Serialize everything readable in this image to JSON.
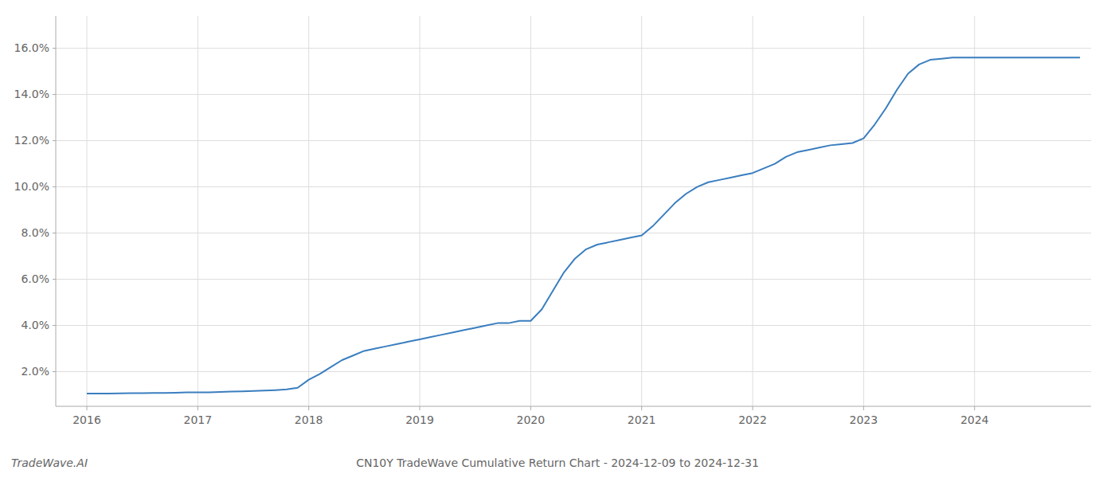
{
  "chart_data": {
    "type": "line",
    "title": "CN10Y TradeWave Cumulative Return Chart - 2024-12-09 to 2024-12-31",
    "annotations": [
      "TradeWave.AI"
    ],
    "color": "#3a7ebf",
    "x": [
      2016.0,
      2016.1,
      2016.2,
      2016.3,
      2016.4,
      2016.5,
      2016.6,
      2016.7,
      2016.8,
      2016.9,
      2017.0,
      2017.1,
      2017.2,
      2017.3,
      2017.4,
      2017.5,
      2017.6,
      2017.7,
      2017.8,
      2017.9,
      2018.0,
      2018.1,
      2018.2,
      2018.3,
      2018.4,
      2018.5,
      2018.6,
      2018.7,
      2018.8,
      2018.9,
      2019.0,
      2019.1,
      2019.2,
      2019.3,
      2019.4,
      2019.5,
      2019.6,
      2019.7,
      2019.8,
      2019.9,
      2020.0,
      2020.1,
      2020.2,
      2020.3,
      2020.4,
      2020.5,
      2020.6,
      2020.7,
      2020.8,
      2020.9,
      2021.0,
      2021.1,
      2021.2,
      2021.3,
      2021.4,
      2021.5,
      2021.6,
      2021.7,
      2021.8,
      2021.9,
      2022.0,
      2022.1,
      2022.2,
      2022.3,
      2022.4,
      2022.5,
      2022.6,
      2022.7,
      2022.8,
      2022.9,
      2023.0,
      2023.1,
      2023.2,
      2023.3,
      2023.4,
      2023.5,
      2023.6,
      2023.7,
      2023.8,
      2023.9,
      2024.0,
      2024.1,
      2024.2,
      2024.3,
      2024.4,
      2024.5,
      2024.6,
      2024.7,
      2024.8,
      2024.9,
      2024.95
    ],
    "values": [
      0.0105,
      0.0105,
      0.0105,
      0.0106,
      0.0107,
      0.0107,
      0.0108,
      0.0108,
      0.0109,
      0.011,
      0.011,
      0.011,
      0.0112,
      0.0114,
      0.0115,
      0.0116,
      0.0118,
      0.012,
      0.0123,
      0.013,
      0.0165,
      0.019,
      0.022,
      0.025,
      0.027,
      0.029,
      0.03,
      0.031,
      0.032,
      0.033,
      0.034,
      0.035,
      0.036,
      0.037,
      0.038,
      0.039,
      0.04,
      0.041,
      0.041,
      0.042,
      0.042,
      0.047,
      0.055,
      0.063,
      0.069,
      0.073,
      0.075,
      0.076,
      0.077,
      0.078,
      0.079,
      0.083,
      0.088,
      0.093,
      0.097,
      0.1,
      0.102,
      0.103,
      0.104,
      0.105,
      0.106,
      0.108,
      0.11,
      0.113,
      0.115,
      0.116,
      0.117,
      0.118,
      0.1185,
      0.119,
      0.121,
      0.127,
      0.134,
      0.142,
      0.149,
      0.153,
      0.155,
      0.1555,
      0.156,
      0.156,
      0.156,
      0.156,
      0.156,
      0.156,
      0.156,
      0.156,
      0.156,
      0.156,
      0.156,
      0.156,
      0.156
    ],
    "xlim": [
      2015.72,
      2025.05
    ],
    "ylim": [
      0.005,
      0.174
    ],
    "xticks": [
      2016,
      2017,
      2018,
      2019,
      2020,
      2021,
      2022,
      2023,
      2024
    ],
    "yticks": [
      {
        "value": 0.02,
        "label": "2.0%"
      },
      {
        "value": 0.04,
        "label": "4.0%"
      },
      {
        "value": 0.06,
        "label": "6.0%"
      },
      {
        "value": 0.08,
        "label": "8.0%"
      },
      {
        "value": 0.1,
        "label": "10.0%"
      },
      {
        "value": 0.12,
        "label": "12.0%"
      },
      {
        "value": 0.14,
        "label": "14.0%"
      },
      {
        "value": 0.16,
        "label": "16.0%"
      }
    ],
    "grid": true
  }
}
